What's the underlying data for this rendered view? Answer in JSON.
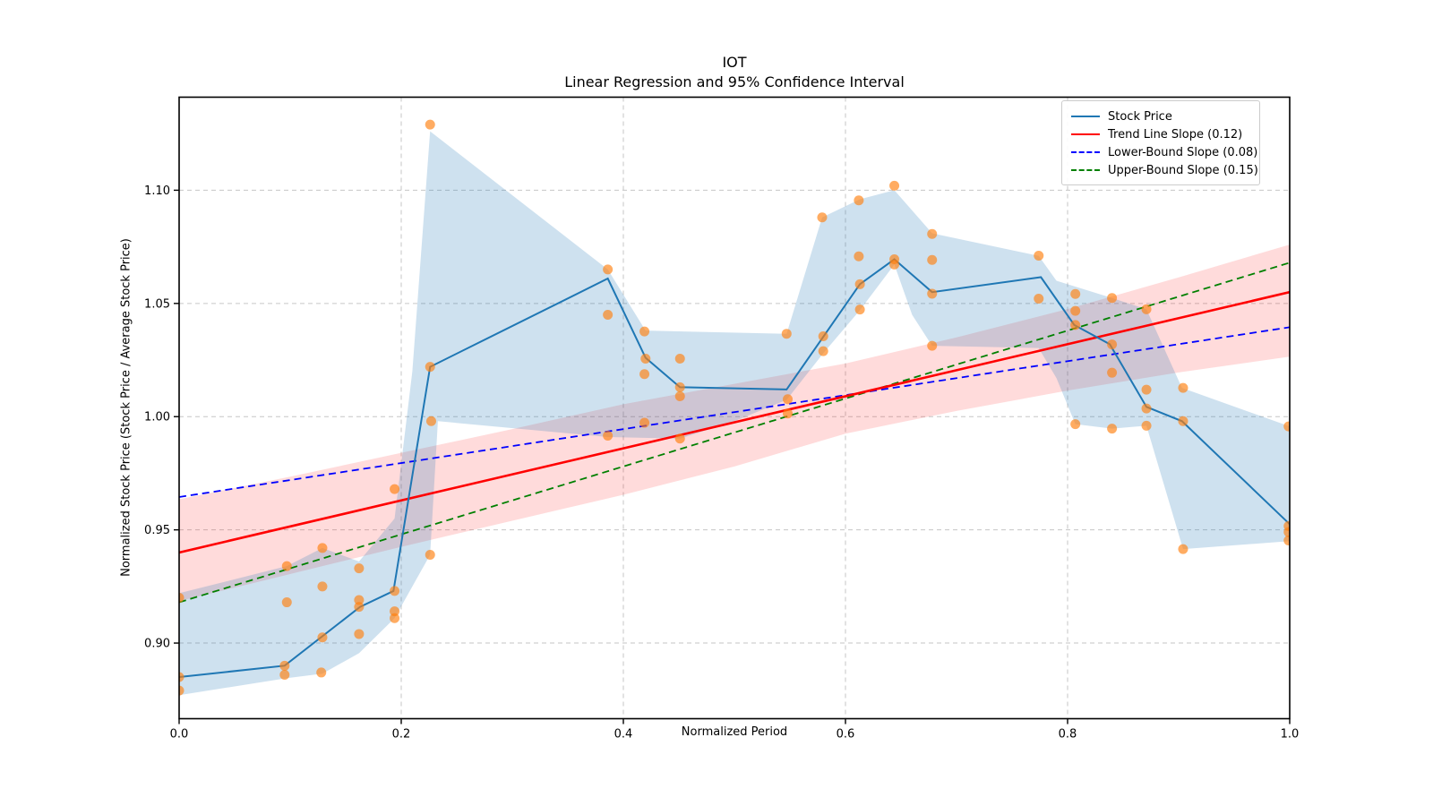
{
  "title": {
    "text": "IOT",
    "subtitle": "Linear Regression and 95% Confidence Interval"
  },
  "axes": {
    "xlabel": "Normalized Period",
    "ylabel": "Normalized Stock Price (Stock Price / Average Stock Price)"
  },
  "legend": [
    {
      "label": "Stock Price",
      "color": "#1f77b4",
      "dash": "solid"
    },
    {
      "label": "Trend Line Slope (0.12)",
      "color": "#ff0000",
      "dash": "solid"
    },
    {
      "label": "Lower-Bound Slope (0.08)",
      "color": "#0000ff",
      "dash": "dashed"
    },
    {
      "label": "Upper-Bound Slope (0.15)",
      "color": "#008000",
      "dash": "dashed"
    }
  ],
  "colors": {
    "stock_line": "#1f77b4",
    "scatter": "#ff7f0e",
    "trend_line": "#ff0000",
    "lower_bound": "#0000ff",
    "upper_bound": "#008000",
    "stock_band": "rgba(31,119,180,0.22)",
    "trend_band": "rgba(255,0,0,0.14)",
    "grid": "#c6c6c6",
    "spine": "#000000"
  },
  "chart_data": {
    "type": "line",
    "title": "IOT",
    "subtitle": "Linear Regression and 95% Confidence Interval",
    "xlabel": "Normalized Period",
    "ylabel": "Normalized Stock Price (Stock Price / Average Stock Price)",
    "grid": true,
    "legend_position": "upper right",
    "xlim": [
      0.0,
      1.0
    ],
    "ylim": [
      0.8666,
      1.1411
    ],
    "x_ticks": [
      0.0,
      0.2,
      0.4,
      0.6,
      0.8,
      1.0
    ],
    "x_tick_labels": [
      "0.0",
      "0.2",
      "0.4",
      "0.6",
      "0.8",
      "1.0"
    ],
    "y_ticks": [
      0.9,
      0.95,
      1.0,
      1.05,
      1.1
    ],
    "y_tick_labels": [
      "0.90",
      "0.95",
      "1.00",
      "1.05",
      "1.10"
    ],
    "stock_price_line": {
      "x": [
        0.0,
        0.095,
        0.163,
        0.193,
        0.226,
        0.386,
        0.42,
        0.451,
        0.547,
        0.613,
        0.644,
        0.678,
        0.776,
        0.806,
        0.838,
        0.871,
        0.903,
        1.0
      ],
      "y": [
        0.885,
        0.89,
        0.916,
        0.923,
        1.022,
        1.061,
        1.026,
        1.013,
        1.012,
        1.0585,
        1.0695,
        1.055,
        1.0616,
        1.0405,
        1.032,
        1.0043,
        0.998,
        0.9525
      ]
    },
    "scatter_points": [
      [
        0.0,
        0.92
      ],
      [
        0.0,
        0.885
      ],
      [
        0.0,
        0.879
      ],
      [
        0.097,
        0.934
      ],
      [
        0.097,
        0.918
      ],
      [
        0.095,
        0.89
      ],
      [
        0.095,
        0.886
      ],
      [
        0.129,
        0.942
      ],
      [
        0.129,
        0.925
      ],
      [
        0.129,
        0.9025
      ],
      [
        0.128,
        0.887
      ],
      [
        0.162,
        0.933
      ],
      [
        0.162,
        0.919
      ],
      [
        0.162,
        0.916
      ],
      [
        0.162,
        0.904
      ],
      [
        0.194,
        0.968
      ],
      [
        0.194,
        0.923
      ],
      [
        0.194,
        0.914
      ],
      [
        0.194,
        0.911
      ],
      [
        0.226,
        1.129
      ],
      [
        0.226,
        1.022
      ],
      [
        0.227,
        0.998
      ],
      [
        0.226,
        0.939
      ],
      [
        0.386,
        1.065
      ],
      [
        0.386,
        1.045
      ],
      [
        0.386,
        0.9916
      ],
      [
        0.419,
        1.0376
      ],
      [
        0.42,
        1.0256
      ],
      [
        0.419,
        1.0188
      ],
      [
        0.419,
        0.9973
      ],
      [
        0.451,
        1.0256
      ],
      [
        0.451,
        1.013
      ],
      [
        0.451,
        1.009
      ],
      [
        0.451,
        0.9903
      ],
      [
        0.547,
        1.0366
      ],
      [
        0.548,
        1.0077
      ],
      [
        0.548,
        1.0014
      ],
      [
        0.579,
        1.088
      ],
      [
        0.58,
        1.0355
      ],
      [
        0.58,
        1.0289
      ],
      [
        0.612,
        1.0955
      ],
      [
        0.612,
        1.0708
      ],
      [
        0.613,
        1.0585
      ],
      [
        0.613,
        1.0473
      ],
      [
        0.644,
        1.102
      ],
      [
        0.644,
        1.0695
      ],
      [
        0.644,
        1.0672
      ],
      [
        0.678,
        1.0807
      ],
      [
        0.678,
        1.0692
      ],
      [
        0.678,
        1.0543
      ],
      [
        0.678,
        1.0313
      ],
      [
        0.774,
        1.0711
      ],
      [
        0.774,
        1.0521
      ],
      [
        0.807,
        1.0542
      ],
      [
        0.807,
        1.0467
      ],
      [
        0.807,
        1.0405
      ],
      [
        0.807,
        0.9967
      ],
      [
        0.84,
        1.0524
      ],
      [
        0.84,
        1.0319
      ],
      [
        0.84,
        1.0194
      ],
      [
        0.84,
        0.9947
      ],
      [
        0.871,
        1.0474
      ],
      [
        0.871,
        1.0119
      ],
      [
        0.871,
        1.0036
      ],
      [
        0.871,
        0.996
      ],
      [
        0.904,
        1.0127
      ],
      [
        0.904,
        0.998
      ],
      [
        0.904,
        0.9415
      ],
      [
        0.999,
        0.9957
      ],
      [
        0.999,
        0.9517
      ],
      [
        0.999,
        0.949
      ],
      [
        0.999,
        0.9453
      ]
    ],
    "trend_line": {
      "slope": 0.115,
      "intercept": 0.94,
      "label_slope": "0.12",
      "x": [
        0,
        1
      ],
      "y": [
        0.94,
        1.055
      ]
    },
    "lower_bound": {
      "slope": 0.075,
      "intercept": 0.9645,
      "label_slope": "0.08",
      "x": [
        0,
        1
      ],
      "y": [
        0.9645,
        1.0395
      ]
    },
    "upper_bound": {
      "slope": 0.15,
      "intercept": 0.918,
      "label_slope": "0.15",
      "x": [
        0,
        1
      ],
      "y": [
        0.918,
        1.068
      ]
    },
    "stock_band": {
      "upper": [
        [
          0,
          0.922
        ],
        [
          0.097,
          0.934
        ],
        [
          0.129,
          0.942
        ],
        [
          0.162,
          0.936
        ],
        [
          0.194,
          0.955
        ],
        [
          0.21,
          1.02
        ],
        [
          0.226,
          1.126
        ],
        [
          0.386,
          1.065
        ],
        [
          0.42,
          1.038
        ],
        [
          0.547,
          1.0366
        ],
        [
          0.579,
          1.088
        ],
        [
          0.613,
          1.096
        ],
        [
          0.644,
          1.1
        ],
        [
          0.678,
          1.081
        ],
        [
          0.774,
          1.071
        ],
        [
          0.79,
          1.06
        ],
        [
          0.84,
          1.0524
        ],
        [
          0.871,
          1.0474
        ],
        [
          0.903,
          1.0127
        ],
        [
          1.0,
          0.9957
        ]
      ],
      "lower": [
        [
          0,
          0.877
        ],
        [
          0.097,
          0.8845
        ],
        [
          0.129,
          0.8865
        ],
        [
          0.162,
          0.8955
        ],
        [
          0.194,
          0.911
        ],
        [
          0.226,
          0.939
        ],
        [
          0.233,
          0.998
        ],
        [
          0.386,
          0.991
        ],
        [
          0.451,
          0.9903
        ],
        [
          0.5,
          0.998
        ],
        [
          0.547,
          1.0074
        ],
        [
          0.58,
          1.028
        ],
        [
          0.613,
          1.047
        ],
        [
          0.644,
          1.0672
        ],
        [
          0.66,
          1.045
        ],
        [
          0.678,
          1.0313
        ],
        [
          0.774,
          1.0303
        ],
        [
          0.79,
          1.017
        ],
        [
          0.807,
          0.9967
        ],
        [
          0.84,
          0.9947
        ],
        [
          0.871,
          0.996
        ],
        [
          0.904,
          0.9415
        ],
        [
          1.0,
          0.945
        ]
      ]
    },
    "trend_band": {
      "upper": [
        [
          0,
          0.9635
        ],
        [
          0.1,
          0.9735
        ],
        [
          0.2,
          0.984
        ],
        [
          0.3,
          0.9945
        ],
        [
          0.4,
          1.0055
        ],
        [
          0.5,
          1.0145
        ],
        [
          0.6,
          1.0235
        ],
        [
          0.7,
          1.035
        ],
        [
          0.8,
          1.0475
        ],
        [
          0.9,
          1.0615
        ],
        [
          1.0,
          1.076
        ]
      ],
      "lower": [
        [
          0,
          0.9185
        ],
        [
          0.1,
          0.9305
        ],
        [
          0.2,
          0.9425
        ],
        [
          0.3,
          0.954
        ],
        [
          0.4,
          0.9655
        ],
        [
          0.5,
          0.978
        ],
        [
          0.6,
          0.9925
        ],
        [
          0.7,
          1.0025
        ],
        [
          0.8,
          1.0115
        ],
        [
          0.9,
          1.0195
        ],
        [
          1.0,
          1.0265
        ]
      ]
    }
  }
}
